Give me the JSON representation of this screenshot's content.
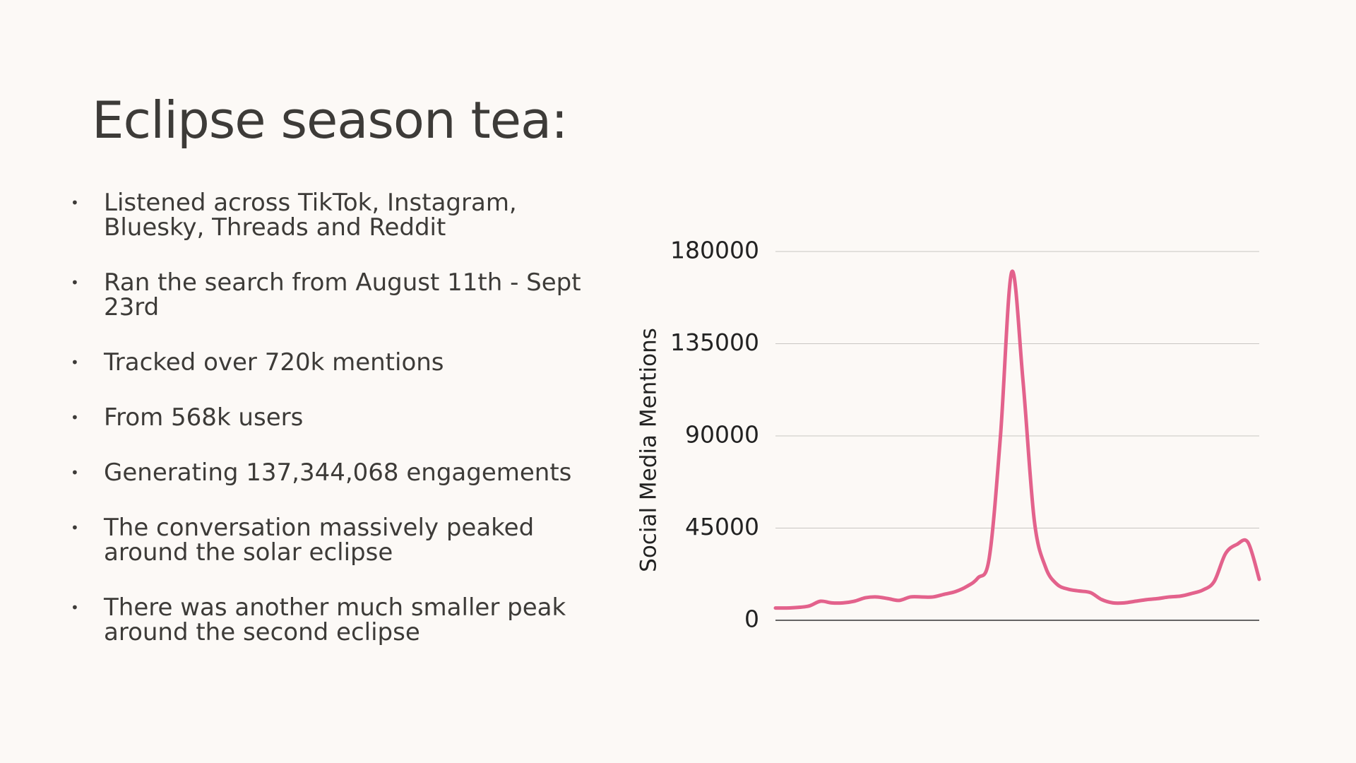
{
  "header": {
    "title": "Eclipse season tea:"
  },
  "bullets": [
    "Listened across TikTok, Instagram, Bluesky, Threads and Reddit",
    "Ran the search from August 11th - Sept 23rd",
    "Tracked over 720k mentions",
    "From 568k users",
    "Generating 137,344,068 engagements",
    "The conversation massively peaked around the solar eclipse",
    "There was another much smaller peak around the second eclipse"
  ],
  "chart_data": {
    "type": "line",
    "y_label": "Social Media Mentions",
    "color": "#e3628c",
    "grid": true,
    "ylim": [
      0,
      180000
    ],
    "yticks": [
      0,
      45000,
      90000,
      135000,
      180000
    ],
    "values": [
      6000,
      6000,
      6300,
      7000,
      9300,
      8500,
      8500,
      9300,
      11000,
      11400,
      10600,
      9700,
      11400,
      11400,
      11400,
      12700,
      14000,
      16500,
      20700,
      30400,
      90000,
      170000,
      117000,
      49000,
      26000,
      17700,
      15200,
      14300,
      13500,
      10100,
      8500,
      8500,
      9300,
      10100,
      10600,
      11400,
      11800,
      13100,
      14800,
      19000,
      32500,
      37000,
      38000,
      20000
    ]
  }
}
